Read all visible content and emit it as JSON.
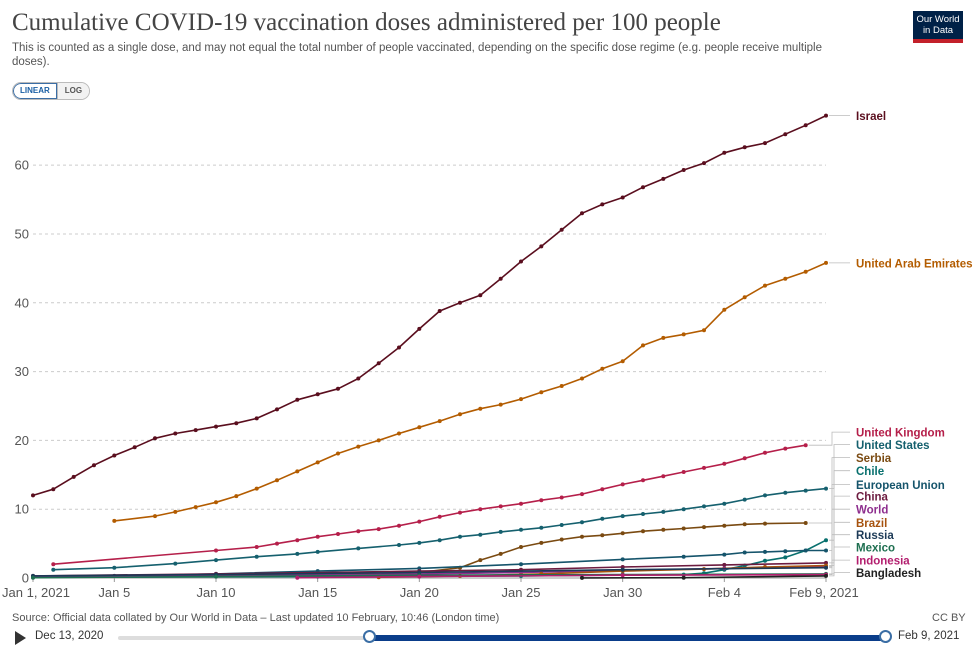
{
  "header": {
    "title": "Cumulative COVID-19 vaccination doses administered per 100 people",
    "subtitle": "This is counted as a single dose, and may not equal the total number of people vaccinated, depending on the specific dose regime (e.g. people receive multiple doses).",
    "logo_line1": "Our World",
    "logo_line2": "in Data"
  },
  "controls": {
    "linear_label": "LINEAR",
    "log_label": "LOG",
    "active": "LINEAR"
  },
  "footer": {
    "source": "Source: Official data collated by Our World in Data – Last updated 10 February, 10:46 (London time)",
    "license": "CC BY"
  },
  "timeline": {
    "start_label": "Dec 13, 2020",
    "end_label": "Feb 9, 2021",
    "range_start": "Jan 1, 2021",
    "range_end": "Feb 9, 2021"
  },
  "chart_data": {
    "type": "line",
    "title": "Cumulative COVID-19 vaccination doses administered per 100 people",
    "xlabel": "",
    "ylabel": "",
    "x_ticks": [
      "Jan 1, 2021",
      "Jan 5",
      "Jan 10",
      "Jan 15",
      "Jan 20",
      "Jan 25",
      "Jan 30",
      "Feb 4",
      "Feb 9, 2021"
    ],
    "x_start": "Jan 1, 2021",
    "x_end": "Feb 9, 2021",
    "y_ticks": [
      0,
      10,
      20,
      30,
      40,
      50,
      60
    ],
    "ylim": [
      0,
      67
    ],
    "grid": "horizontal dashed",
    "legend": "line labels at right",
    "series": [
      {
        "name": "Israel",
        "color": "#5a0e1e",
        "label_at": 67.2,
        "points": [
          [
            "Jan 1, 2021",
            12.0
          ],
          [
            "Jan 2, 2021",
            12.9
          ],
          [
            "Jan 3, 2021",
            14.7
          ],
          [
            "Jan 4, 2021",
            16.4
          ],
          [
            "Jan 5, 2021",
            17.8
          ],
          [
            "Jan 6, 2021",
            19.0
          ],
          [
            "Jan 7, 2021",
            20.3
          ],
          [
            "Jan 8, 2021",
            21.0
          ],
          [
            "Jan 9, 2021",
            21.5
          ],
          [
            "Jan 10, 2021",
            22.0
          ],
          [
            "Jan 11, 2021",
            22.5
          ],
          [
            "Jan 12, 2021",
            23.2
          ],
          [
            "Jan 13, 2021",
            24.5
          ],
          [
            "Jan 14, 2021",
            25.9
          ],
          [
            "Jan 15, 2021",
            26.7
          ],
          [
            "Jan 16, 2021",
            27.5
          ],
          [
            "Jan 17, 2021",
            29.0
          ],
          [
            "Jan 18, 2021",
            31.2
          ],
          [
            "Jan 19, 2021",
            33.5
          ],
          [
            "Jan 20, 2021",
            36.2
          ],
          [
            "Jan 21, 2021",
            38.8
          ],
          [
            "Jan 22, 2021",
            40.0
          ],
          [
            "Jan 23, 2021",
            41.1
          ],
          [
            "Jan 24, 2021",
            43.5
          ],
          [
            "Jan 25, 2021",
            46.0
          ],
          [
            "Jan 26, 2021",
            48.2
          ],
          [
            "Jan 27, 2021",
            50.6
          ],
          [
            "Jan 28, 2021",
            53.0
          ],
          [
            "Jan 29, 2021",
            54.3
          ],
          [
            "Jan 30, 2021",
            55.3
          ],
          [
            "Jan 31, 2021",
            56.8
          ],
          [
            "Feb 1, 2021",
            58.0
          ],
          [
            "Feb 2, 2021",
            59.3
          ],
          [
            "Feb 3, 2021",
            60.3
          ],
          [
            "Feb 4, 2021",
            61.8
          ],
          [
            "Feb 5, 2021",
            62.6
          ],
          [
            "Feb 6, 2021",
            63.2
          ],
          [
            "Feb 7, 2021",
            64.5
          ],
          [
            "Feb 8, 2021",
            65.8
          ],
          [
            "Feb 9, 2021",
            67.2
          ]
        ]
      },
      {
        "name": "United Arab Emirates",
        "color": "#b35c00",
        "label_at": 45.8,
        "points": [
          [
            "Jan 5, 2021",
            8.3
          ],
          [
            "Jan 7, 2021",
            9.0
          ],
          [
            "Jan 8, 2021",
            9.6
          ],
          [
            "Jan 9, 2021",
            10.3
          ],
          [
            "Jan 10, 2021",
            11.0
          ],
          [
            "Jan 11, 2021",
            11.9
          ],
          [
            "Jan 12, 2021",
            13.0
          ],
          [
            "Jan 13, 2021",
            14.2
          ],
          [
            "Jan 14, 2021",
            15.5
          ],
          [
            "Jan 15, 2021",
            16.8
          ],
          [
            "Jan 16, 2021",
            18.1
          ],
          [
            "Jan 17, 2021",
            19.1
          ],
          [
            "Jan 18, 2021",
            20.0
          ],
          [
            "Jan 19, 2021",
            21.0
          ],
          [
            "Jan 20, 2021",
            21.9
          ],
          [
            "Jan 21, 2021",
            22.8
          ],
          [
            "Jan 22, 2021",
            23.8
          ],
          [
            "Jan 23, 2021",
            24.6
          ],
          [
            "Jan 24, 2021",
            25.2
          ],
          [
            "Jan 25, 2021",
            26.0
          ],
          [
            "Jan 26, 2021",
            27.0
          ],
          [
            "Jan 27, 2021",
            27.9
          ],
          [
            "Jan 28, 2021",
            29.0
          ],
          [
            "Jan 29, 2021",
            30.4
          ],
          [
            "Jan 30, 2021",
            31.5
          ],
          [
            "Jan 31, 2021",
            33.8
          ],
          [
            "Feb 1, 2021",
            34.9
          ],
          [
            "Feb 2, 2021",
            35.4
          ],
          [
            "Feb 3, 2021",
            36.0
          ],
          [
            "Feb 4, 2021",
            39.0
          ],
          [
            "Feb 5, 2021",
            40.8
          ],
          [
            "Feb 6, 2021",
            42.5
          ],
          [
            "Feb 7, 2021",
            43.5
          ],
          [
            "Feb 8, 2021",
            44.5
          ],
          [
            "Feb 9, 2021",
            45.8
          ]
        ]
      },
      {
        "name": "United Kingdom",
        "color": "#b51f4a",
        "label_at": 21.2,
        "points": [
          [
            "Jan 2, 2021",
            2.0
          ],
          [
            "Jan 10, 2021",
            4.0
          ],
          [
            "Jan 12, 2021",
            4.5
          ],
          [
            "Jan 13, 2021",
            5.0
          ],
          [
            "Jan 14, 2021",
            5.5
          ],
          [
            "Jan 15, 2021",
            6.0
          ],
          [
            "Jan 16, 2021",
            6.4
          ],
          [
            "Jan 17, 2021",
            6.8
          ],
          [
            "Jan 18, 2021",
            7.1
          ],
          [
            "Jan 19, 2021",
            7.6
          ],
          [
            "Jan 20, 2021",
            8.2
          ],
          [
            "Jan 21, 2021",
            8.9
          ],
          [
            "Jan 22, 2021",
            9.5
          ],
          [
            "Jan 23, 2021",
            10.0
          ],
          [
            "Jan 24, 2021",
            10.4
          ],
          [
            "Jan 25, 2021",
            10.8
          ],
          [
            "Jan 26, 2021",
            11.3
          ],
          [
            "Jan 27, 2021",
            11.7
          ],
          [
            "Jan 28, 2021",
            12.2
          ],
          [
            "Jan 29, 2021",
            12.9
          ],
          [
            "Jan 30, 2021",
            13.6
          ],
          [
            "Jan 31, 2021",
            14.2
          ],
          [
            "Feb 1, 2021",
            14.8
          ],
          [
            "Feb 2, 2021",
            15.4
          ],
          [
            "Feb 3, 2021",
            16.0
          ],
          [
            "Feb 4, 2021",
            16.6
          ],
          [
            "Feb 5, 2021",
            17.4
          ],
          [
            "Feb 6, 2021",
            18.2
          ],
          [
            "Feb 7, 2021",
            18.8
          ],
          [
            "Feb 8, 2021",
            19.3
          ]
        ]
      },
      {
        "name": "United States",
        "color": "#15606e",
        "label_at": 19.4,
        "points": [
          [
            "Jan 2, 2021",
            1.2
          ],
          [
            "Jan 5, 2021",
            1.5
          ],
          [
            "Jan 8, 2021",
            2.1
          ],
          [
            "Jan 10, 2021",
            2.6
          ],
          [
            "Jan 12, 2021",
            3.1
          ],
          [
            "Jan 14, 2021",
            3.5
          ],
          [
            "Jan 15, 2021",
            3.8
          ],
          [
            "Jan 17, 2021",
            4.3
          ],
          [
            "Jan 19, 2021",
            4.8
          ],
          [
            "Jan 20, 2021",
            5.1
          ],
          [
            "Jan 21, 2021",
            5.5
          ],
          [
            "Jan 22, 2021",
            6.0
          ],
          [
            "Jan 23, 2021",
            6.3
          ],
          [
            "Jan 24, 2021",
            6.7
          ],
          [
            "Jan 25, 2021",
            7.0
          ],
          [
            "Jan 26, 2021",
            7.3
          ],
          [
            "Jan 27, 2021",
            7.7
          ],
          [
            "Jan 28, 2021",
            8.1
          ],
          [
            "Jan 29, 2021",
            8.6
          ],
          [
            "Jan 30, 2021",
            9.0
          ],
          [
            "Jan 31, 2021",
            9.3
          ],
          [
            "Feb 1, 2021",
            9.6
          ],
          [
            "Feb 2, 2021",
            10.0
          ],
          [
            "Feb 3, 2021",
            10.4
          ],
          [
            "Feb 4, 2021",
            10.8
          ],
          [
            "Feb 5, 2021",
            11.4
          ],
          [
            "Feb 6, 2021",
            12.0
          ],
          [
            "Feb 7, 2021",
            12.4
          ],
          [
            "Feb 8, 2021",
            12.7
          ],
          [
            "Feb 9, 2021",
            13.0
          ]
        ]
      },
      {
        "name": "Serbia",
        "color": "#7a4a11",
        "label_at": 17.5,
        "points": [
          [
            "Jan 1, 2021",
            0.1
          ],
          [
            "Jan 10, 2021",
            0.3
          ],
          [
            "Jan 20, 2021",
            0.8
          ],
          [
            "Jan 22, 2021",
            1.5
          ],
          [
            "Jan 23, 2021",
            2.6
          ],
          [
            "Jan 24, 2021",
            3.5
          ],
          [
            "Jan 25, 2021",
            4.5
          ],
          [
            "Jan 26, 2021",
            5.1
          ],
          [
            "Jan 27, 2021",
            5.6
          ],
          [
            "Jan 28, 2021",
            6.0
          ],
          [
            "Jan 29, 2021",
            6.2
          ],
          [
            "Jan 30, 2021",
            6.5
          ],
          [
            "Jan 31, 2021",
            6.8
          ],
          [
            "Feb 1, 2021",
            7.0
          ],
          [
            "Feb 2, 2021",
            7.2
          ],
          [
            "Feb 3, 2021",
            7.4
          ],
          [
            "Feb 4, 2021",
            7.6
          ],
          [
            "Feb 5, 2021",
            7.8
          ],
          [
            "Feb 6, 2021",
            7.9
          ],
          [
            "Feb 8, 2021",
            8.0
          ]
        ]
      },
      {
        "name": "Chile",
        "color": "#08706e",
        "label_at": 15.6,
        "points": [
          [
            "Jan 1, 2021",
            0.1
          ],
          [
            "Jan 15, 2021",
            0.2
          ],
          [
            "Jan 25, 2021",
            0.3
          ],
          [
            "Feb 2, 2021",
            0.5
          ],
          [
            "Feb 3, 2021",
            0.7
          ],
          [
            "Feb 4, 2021",
            1.2
          ],
          [
            "Feb 5, 2021",
            1.8
          ],
          [
            "Feb 6, 2021",
            2.5
          ],
          [
            "Feb 7, 2021",
            3.0
          ],
          [
            "Feb 8, 2021",
            4.0
          ],
          [
            "Feb 9, 2021",
            5.5
          ]
        ]
      },
      {
        "name": "European Union",
        "color": "#15546b",
        "label_at": 13.6,
        "points": [
          [
            "Jan 1, 2021",
            0.1
          ],
          [
            "Jan 5, 2021",
            0.3
          ],
          [
            "Jan 10, 2021",
            0.6
          ],
          [
            "Jan 15, 2021",
            1.0
          ],
          [
            "Jan 20, 2021",
            1.4
          ],
          [
            "Jan 25, 2021",
            2.0
          ],
          [
            "Jan 30, 2021",
            2.7
          ],
          [
            "Feb 2, 2021",
            3.1
          ],
          [
            "Feb 4, 2021",
            3.4
          ],
          [
            "Feb 5, 2021",
            3.7
          ],
          [
            "Feb 6, 2021",
            3.8
          ],
          [
            "Feb 7, 2021",
            3.9
          ],
          [
            "Feb 8, 2021",
            4.0
          ],
          [
            "Feb 9, 2021",
            4.0
          ]
        ]
      },
      {
        "name": "China",
        "color": "#6d1c40",
        "label_at": 11.9,
        "points": [
          [
            "Jan 1, 2021",
            0.3
          ],
          [
            "Jan 10, 2021",
            0.6
          ],
          [
            "Jan 20, 2021",
            1.0
          ],
          [
            "Jan 25, 2021",
            1.2
          ],
          [
            "Jan 30, 2021",
            1.6
          ],
          [
            "Feb 4, 2021",
            1.9
          ],
          [
            "Feb 9, 2021",
            2.2
          ]
        ]
      },
      {
        "name": "World",
        "color": "#8e2e8e",
        "label_at": 10.0,
        "points": [
          [
            "Jan 1, 2021",
            0.1
          ],
          [
            "Jan 10, 2021",
            0.3
          ],
          [
            "Jan 20, 2021",
            0.6
          ],
          [
            "Jan 25, 2021",
            0.8
          ],
          [
            "Jan 30, 2021",
            1.1
          ],
          [
            "Feb 4, 2021",
            1.4
          ],
          [
            "Feb 9, 2021",
            1.7
          ]
        ]
      },
      {
        "name": "Brazil",
        "color": "#a6520e",
        "label_at": 8.1,
        "points": [
          [
            "Jan 18, 2021",
            0.1
          ],
          [
            "Jan 22, 2021",
            0.3
          ],
          [
            "Jan 26, 2021",
            0.6
          ],
          [
            "Jan 30, 2021",
            1.0
          ],
          [
            "Feb 3, 2021",
            1.3
          ],
          [
            "Feb 6, 2021",
            1.6
          ],
          [
            "Feb 9, 2021",
            1.8
          ]
        ]
      },
      {
        "name": "Russia",
        "color": "#1c3a57",
        "label_at": 6.3,
        "points": [
          [
            "Jan 1, 2021",
            0.3
          ],
          [
            "Jan 10, 2021",
            0.5
          ],
          [
            "Jan 20, 2021",
            0.8
          ],
          [
            "Jan 30, 2021",
            1.2
          ],
          [
            "Feb 9, 2021",
            1.5
          ]
        ]
      },
      {
        "name": "Mexico",
        "color": "#1e6f50",
        "label_at": 4.5,
        "points": [
          [
            "Jan 1, 2021",
            0.05
          ],
          [
            "Jan 10, 2021",
            0.2
          ],
          [
            "Jan 20, 2021",
            0.4
          ],
          [
            "Jan 30, 2021",
            0.5
          ],
          [
            "Feb 9, 2021",
            0.6
          ]
        ]
      },
      {
        "name": "Indonesia",
        "color": "#b31e6e",
        "label_at": 2.6,
        "points": [
          [
            "Jan 14, 2021",
            0.05
          ],
          [
            "Jan 20, 2021",
            0.2
          ],
          [
            "Jan 30, 2021",
            0.4
          ],
          [
            "Feb 9, 2021",
            0.5
          ]
        ]
      },
      {
        "name": "Bangladesh",
        "color": "#222222",
        "label_at": 0.8,
        "points": [
          [
            "Jan 28, 2021",
            0.01
          ],
          [
            "Feb 2, 2021",
            0.05
          ],
          [
            "Feb 9, 2021",
            0.3
          ]
        ]
      }
    ]
  }
}
